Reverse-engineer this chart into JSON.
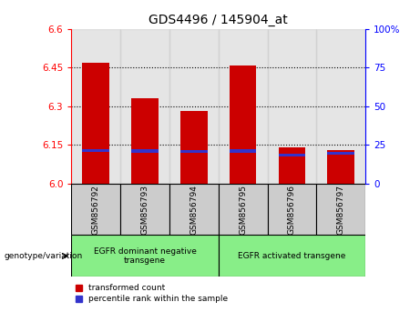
{
  "title": "GDS4496 / 145904_at",
  "categories": [
    "GSM856792",
    "GSM856793",
    "GSM856794",
    "GSM856795",
    "GSM856796",
    "GSM856797"
  ],
  "red_values": [
    6.47,
    6.33,
    6.28,
    6.46,
    6.14,
    6.13
  ],
  "blue_values": [
    6.123,
    6.121,
    6.118,
    6.121,
    6.105,
    6.112
  ],
  "base": 6.0,
  "ylim": [
    6.0,
    6.6
  ],
  "y_ticks_left": [
    6.0,
    6.15,
    6.3,
    6.45,
    6.6
  ],
  "y_ticks_right": [
    0,
    25,
    50,
    75,
    100
  ],
  "right_ylim": [
    0,
    100
  ],
  "group1_label": "EGFR dominant negative\ntransgene",
  "group2_label": "EGFR activated transgene",
  "legend_red": "transformed count",
  "legend_blue": "percentile rank within the sample",
  "genotype_label": "genotype/variation",
  "bar_width": 0.55,
  "red_color": "#cc0000",
  "blue_color": "#3333cc",
  "group_bg_color": "#88ee88",
  "bar_bg_color": "#cccccc",
  "title_fontsize": 10,
  "tick_fontsize": 7.5,
  "label_fontsize": 7
}
